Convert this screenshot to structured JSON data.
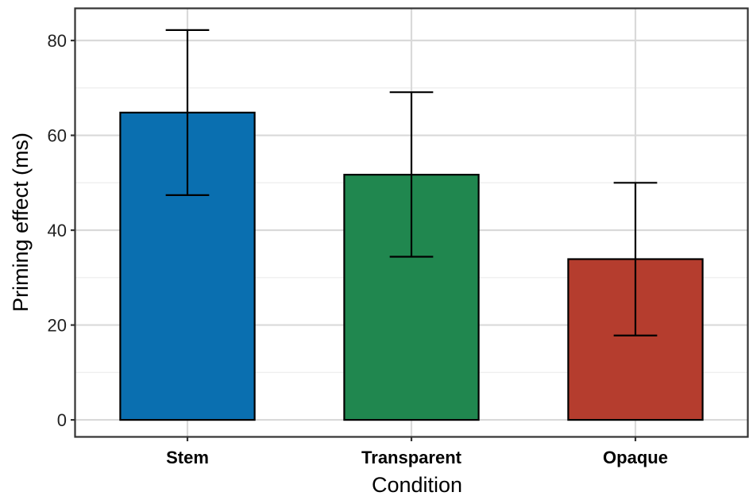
{
  "chart_data": {
    "type": "bar",
    "title": "",
    "xlabel": "Condition",
    "ylabel": "Priming effect (ms)",
    "categories": [
      "Stem",
      "Transparent",
      "Opaque"
    ],
    "values": [
      64.8,
      51.7,
      33.9
    ],
    "error_low": [
      47.4,
      34.4,
      17.8
    ],
    "error_high": [
      82.2,
      69.1,
      50.0
    ],
    "colors": [
      "#0A6FB0",
      "#20874F",
      "#B53D2E"
    ],
    "ylim": [
      -3.5,
      86.7
    ],
    "yticks": [
      0,
      20,
      40,
      60,
      80
    ],
    "ytick_labels": [
      "0",
      "20",
      "40",
      "60",
      "80"
    ],
    "minor_yticks": [
      10,
      30,
      50,
      70
    ],
    "grid": true,
    "legend": "none"
  }
}
